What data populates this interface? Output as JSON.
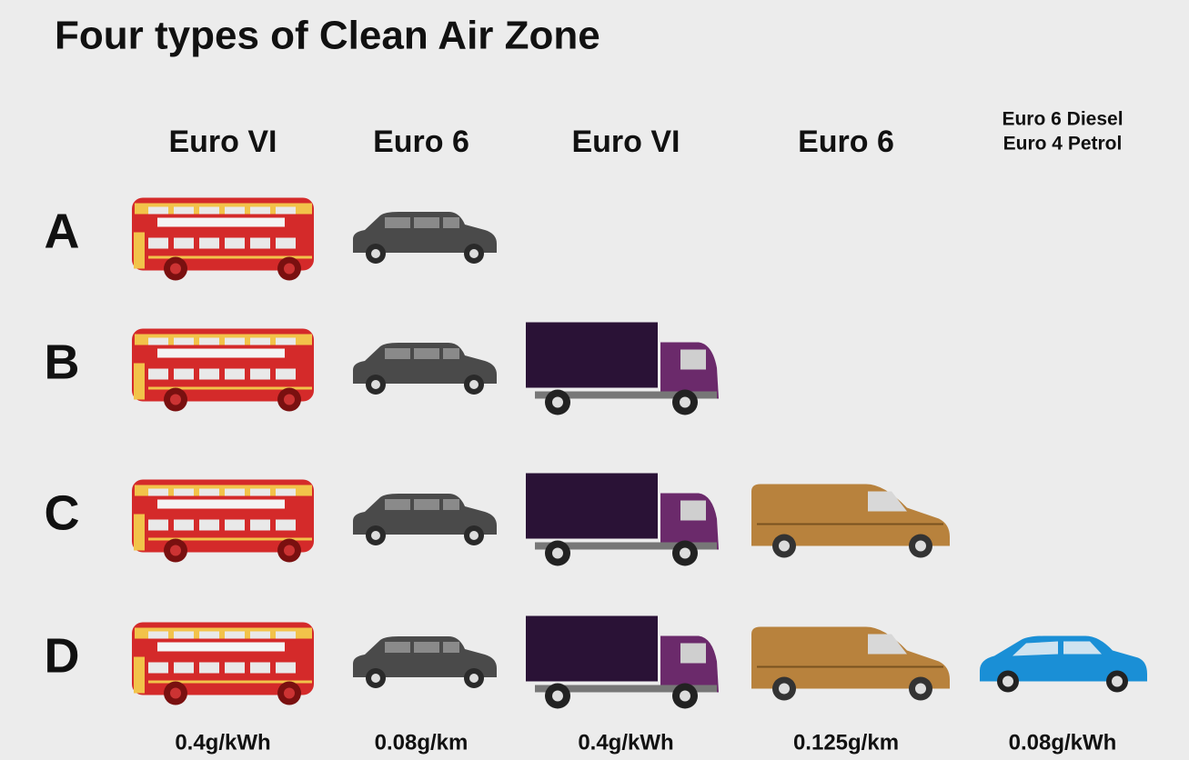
{
  "title": "Four types of Clean Air Zone",
  "columns": [
    {
      "standard": "Euro VI",
      "limit": "0.4g/kWh"
    },
    {
      "standard": "Euro 6",
      "limit": "0.08g/km"
    },
    {
      "standard": "Euro VI",
      "limit": "0.4g/kWh"
    },
    {
      "standard": "Euro 6",
      "limit": "0.125g/km"
    },
    {
      "standard": [
        "Euro 6 Diesel",
        "Euro 4 Petrol"
      ],
      "limit": "0.08g/kWh"
    }
  ],
  "rows": [
    {
      "label": "A"
    },
    {
      "label": "B"
    },
    {
      "label": "C"
    },
    {
      "label": "D"
    }
  ]
}
